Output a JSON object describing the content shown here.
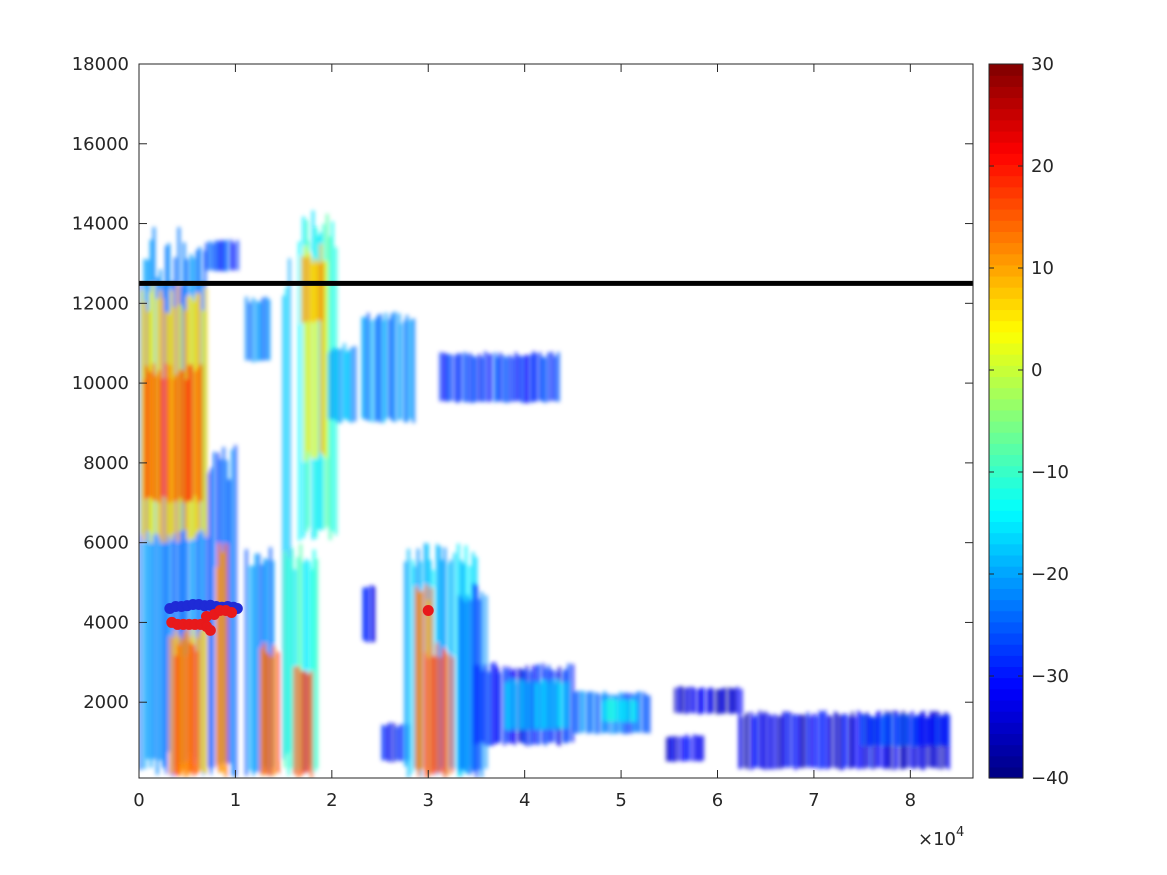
{
  "chart_data": {
    "type": "heatmap",
    "title": "",
    "xlabel": "",
    "ylabel": "",
    "x_exponent_label": "×10",
    "x_exponent": "4",
    "xlim": [
      0,
      86500
    ],
    "ylim": [
      100,
      18000
    ],
    "x_ticks": [
      {
        "value": 0,
        "label": "0"
      },
      {
        "value": 10000,
        "label": "1"
      },
      {
        "value": 20000,
        "label": "2"
      },
      {
        "value": 30000,
        "label": "3"
      },
      {
        "value": 40000,
        "label": "4"
      },
      {
        "value": 50000,
        "label": "5"
      },
      {
        "value": 60000,
        "label": "6"
      },
      {
        "value": 70000,
        "label": "7"
      },
      {
        "value": 80000,
        "label": "8"
      }
    ],
    "y_ticks": [
      {
        "value": 2000,
        "label": "2000"
      },
      {
        "value": 4000,
        "label": "4000"
      },
      {
        "value": 6000,
        "label": "6000"
      },
      {
        "value": 8000,
        "label": "8000"
      },
      {
        "value": 10000,
        "label": "10000"
      },
      {
        "value": 12000,
        "label": "12000"
      },
      {
        "value": 14000,
        "label": "14000"
      },
      {
        "value": 16000,
        "label": "16000"
      },
      {
        "value": 18000,
        "label": "18000"
      }
    ],
    "colorbar": {
      "colormap": "jet",
      "clim": [
        -40,
        30
      ],
      "ticks": [
        {
          "value": 30,
          "label": "30"
        },
        {
          "value": 20,
          "label": "20"
        },
        {
          "value": 10,
          "label": "10"
        },
        {
          "value": 0,
          "label": "0"
        },
        {
          "value": -10,
          "label": "−10"
        },
        {
          "value": -20,
          "label": "−20"
        },
        {
          "value": -30,
          "label": "−30"
        },
        {
          "value": -40,
          "label": "−40"
        }
      ]
    },
    "grid": false,
    "reference_line": {
      "y": 12500,
      "x_range": [
        0,
        86500
      ],
      "color": "#000000"
    },
    "blobs": [
      {
        "x0": 0,
        "x1": 7000,
        "y0": 100,
        "y1": 14000,
        "v": -22
      },
      {
        "x0": 0,
        "x1": 7000,
        "y0": 6000,
        "y1": 12500,
        "v": 5
      },
      {
        "x0": 300,
        "x1": 6500,
        "y0": 7000,
        "y1": 10500,
        "v": 16
      },
      {
        "x0": 3000,
        "x1": 7000,
        "y0": 100,
        "y1": 4000,
        "v": 8
      },
      {
        "x0": 3500,
        "x1": 6000,
        "y0": 100,
        "y1": 3500,
        "v": 15
      },
      {
        "x0": 7000,
        "x1": 10000,
        "y0": 100,
        "y1": 8500,
        "v": -25
      },
      {
        "x0": 7800,
        "x1": 9200,
        "y0": 100,
        "y1": 6000,
        "v": 12
      },
      {
        "x0": 6800,
        "x1": 10200,
        "y0": 12800,
        "y1": 13600,
        "v": -27
      },
      {
        "x0": 11000,
        "x1": 13500,
        "y0": 10500,
        "y1": 12200,
        "v": -24
      },
      {
        "x0": 11000,
        "x1": 14000,
        "y0": 100,
        "y1": 6000,
        "v": -22
      },
      {
        "x0": 12500,
        "x1": 14500,
        "y0": 100,
        "y1": 3500,
        "v": 15
      },
      {
        "x0": 14800,
        "x1": 15600,
        "y0": 100,
        "y1": 13600,
        "v": -16
      },
      {
        "x0": 15000,
        "x1": 18600,
        "y0": 100,
        "y1": 6000,
        "v": -12
      },
      {
        "x0": 16000,
        "x1": 18000,
        "y0": 100,
        "y1": 3000,
        "v": 16
      },
      {
        "x0": 16500,
        "x1": 20500,
        "y0": 6000,
        "y1": 14400,
        "v": -12
      },
      {
        "x0": 17000,
        "x1": 19500,
        "y0": 8000,
        "y1": 13500,
        "v": 6
      },
      {
        "x0": 16800,
        "x1": 19000,
        "y0": 11500,
        "y1": 13200,
        "v": 9
      },
      {
        "x0": 19500,
        "x1": 22500,
        "y0": 9000,
        "y1": 11000,
        "v": -20
      },
      {
        "x0": 23000,
        "x1": 28500,
        "y0": 9000,
        "y1": 11800,
        "v": -22
      },
      {
        "x0": 23000,
        "x1": 24500,
        "y0": 3500,
        "y1": 5000,
        "v": -30
      },
      {
        "x0": 25000,
        "x1": 28000,
        "y0": 500,
        "y1": 1500,
        "v": -30
      },
      {
        "x0": 27500,
        "x1": 35000,
        "y0": 100,
        "y1": 6000,
        "v": -18
      },
      {
        "x0": 28500,
        "x1": 30500,
        "y0": 100,
        "y1": 5000,
        "v": 10
      },
      {
        "x0": 29500,
        "x1": 32500,
        "y0": 100,
        "y1": 3500,
        "v": 16
      },
      {
        "x0": 33000,
        "x1": 36000,
        "y0": 100,
        "y1": 5000,
        "v": -25
      },
      {
        "x0": 31000,
        "x1": 43500,
        "y0": 9500,
        "y1": 10800,
        "v": -28
      },
      {
        "x0": 34500,
        "x1": 45000,
        "y0": 900,
        "y1": 3000,
        "v": -30
      },
      {
        "x0": 38000,
        "x1": 44500,
        "y0": 1300,
        "y1": 2600,
        "v": -18
      },
      {
        "x0": 45000,
        "x1": 53000,
        "y0": 1200,
        "y1": 2300,
        "v": -24
      },
      {
        "x0": 48000,
        "x1": 51500,
        "y0": 1500,
        "y1": 2100,
        "v": -15
      },
      {
        "x0": 54500,
        "x1": 58500,
        "y0": 500,
        "y1": 1200,
        "v": -33
      },
      {
        "x0": 55500,
        "x1": 62500,
        "y0": 1700,
        "y1": 2400,
        "v": -34
      },
      {
        "x0": 62000,
        "x1": 84000,
        "y0": 300,
        "y1": 1800,
        "v": -33
      },
      {
        "x0": 75000,
        "x1": 84000,
        "y0": 900,
        "y1": 1700,
        "v": -28
      }
    ],
    "markers": {
      "blue": {
        "color": "#1f2bd6",
        "points": [
          [
            3200,
            4350
          ],
          [
            3800,
            4400
          ],
          [
            4400,
            4400
          ],
          [
            5000,
            4420
          ],
          [
            5600,
            4450
          ],
          [
            6200,
            4450
          ],
          [
            6800,
            4420
          ],
          [
            7400,
            4430
          ],
          [
            8000,
            4400
          ],
          [
            8600,
            4380
          ],
          [
            9200,
            4400
          ],
          [
            9800,
            4380
          ],
          [
            10200,
            4350
          ]
        ]
      },
      "red": {
        "color": "#e8191b",
        "points": [
          [
            3400,
            4000
          ],
          [
            4000,
            3950
          ],
          [
            4600,
            3950
          ],
          [
            5200,
            3950
          ],
          [
            5800,
            3950
          ],
          [
            6400,
            3950
          ],
          [
            7000,
            3900
          ],
          [
            7400,
            3800
          ],
          [
            7000,
            4150
          ],
          [
            7800,
            4200
          ],
          [
            8400,
            4300
          ],
          [
            9000,
            4300
          ],
          [
            9600,
            4250
          ],
          [
            30000,
            4300
          ]
        ]
      }
    }
  }
}
